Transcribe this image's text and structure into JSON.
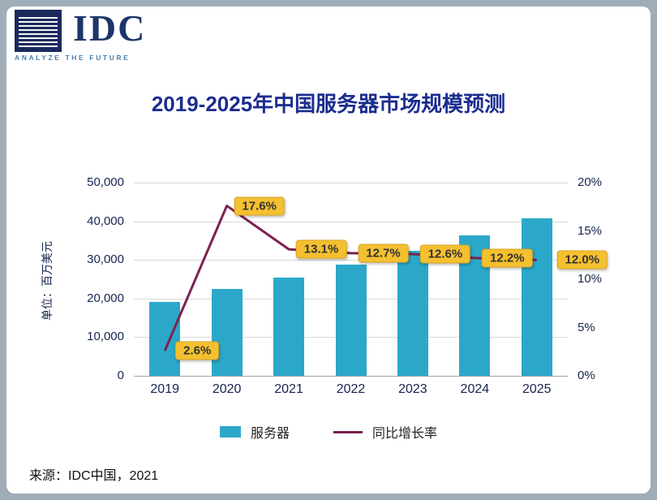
{
  "logo": {
    "text": "IDC",
    "tagline": "ANALYZE THE FUTURE"
  },
  "title": "2019-2025年中国服务器市场规模预测",
  "chart_data": {
    "type": "combo",
    "categories": [
      "2019",
      "2020",
      "2021",
      "2022",
      "2023",
      "2024",
      "2025"
    ],
    "series": [
      {
        "name": "服务器",
        "type": "bar",
        "values": [
          19200,
          22500,
          25500,
          28700,
          32400,
          36300,
          40700
        ],
        "color": "#2ba8c9"
      },
      {
        "name": "同比增长率",
        "type": "line",
        "values": [
          2.6,
          17.6,
          13.1,
          12.7,
          12.6,
          12.2,
          12.0
        ],
        "labels": [
          "2.6%",
          "17.6%",
          "13.1%",
          "12.7%",
          "12.6%",
          "12.2%",
          "12.0%"
        ],
        "color": "#7c2150"
      }
    ],
    "left_axis": {
      "label": "单位：百万美元",
      "min": 0,
      "max": 50000,
      "ticks": [
        "0",
        "10,000",
        "20,000",
        "30,000",
        "40,000",
        "50,000"
      ]
    },
    "right_axis": {
      "min": 0,
      "max": 20,
      "ticks": [
        "0%",
        "5%",
        "10%",
        "15%",
        "20%"
      ]
    },
    "legend_position": "bottom",
    "grid": true
  },
  "source": "来源：IDC中国，2021"
}
